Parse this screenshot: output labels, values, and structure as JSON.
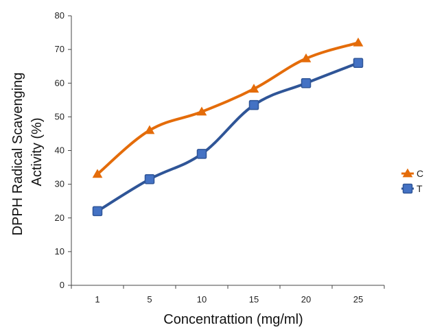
{
  "chart_data": {
    "type": "line",
    "categories": [
      "1",
      "5",
      "10",
      "15",
      "20",
      "25"
    ],
    "series": [
      {
        "name": "C",
        "values": [
          33,
          46,
          51.5,
          58.3,
          67.3,
          72
        ],
        "color": "#E46C0A",
        "marker": "triangle"
      },
      {
        "name": "T",
        "values": [
          22,
          31.5,
          39,
          53.5,
          60,
          66
        ],
        "color": "#2F5597",
        "marker_fill": "#4472C4",
        "marker": "square"
      }
    ],
    "xlabel": "Concentrattion (mg/ml)",
    "ylabel_line1": "DPPH Radical Scavenging",
    "ylabel_line2": "Activity (%)",
    "ylim": [
      0,
      80
    ],
    "yticks": [
      "0",
      "10",
      "20",
      "30",
      "40",
      "50",
      "60",
      "70",
      "80"
    ],
    "grid": false,
    "legend": "right"
  }
}
